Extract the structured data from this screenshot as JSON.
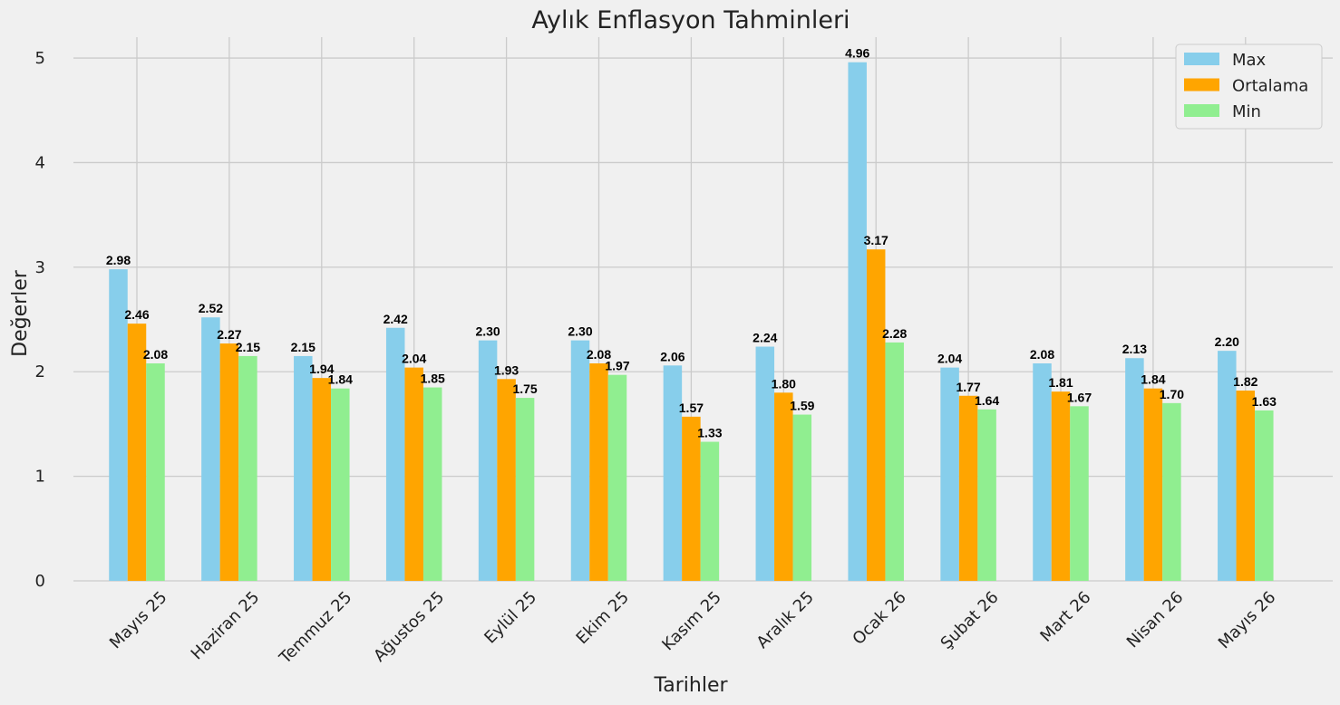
{
  "chart_data": {
    "type": "bar",
    "title": "Aylık Enflasyon Tahminleri",
    "xlabel": "Tarihler",
    "ylabel": "Değerler",
    "ylim": [
      0,
      5.2
    ],
    "yticks": [
      "0",
      "1",
      "2",
      "3",
      "4",
      "5"
    ],
    "grid": true,
    "legend_position": "top-right",
    "categories": [
      "Mayıs 25",
      "Haziran 25",
      "Temmuz 25",
      "Ağustos 25",
      "Eylül 25",
      "Ekim 25",
      "Kasım 25",
      "Aralık 25",
      "Ocak 26",
      "Şubat 26",
      "Mart 26",
      "Nisan 26",
      "Mayıs 26"
    ],
    "series": [
      {
        "name": "Max",
        "color": "#87ceeb",
        "values": [
          2.98,
          2.52,
          2.15,
          2.42,
          2.3,
          2.3,
          2.06,
          2.24,
          4.96,
          2.04,
          2.08,
          2.13,
          2.2
        ],
        "labels": [
          "2.98",
          "2.52",
          "2.15",
          "2.42",
          "2.30",
          "2.30",
          "2.06",
          "2.24",
          "4.96",
          "2.04",
          "2.08",
          "2.13",
          "2.20"
        ]
      },
      {
        "name": "Ortalama",
        "color": "#ffa500",
        "values": [
          2.46,
          2.27,
          1.94,
          2.04,
          1.93,
          2.08,
          1.57,
          1.8,
          3.17,
          1.77,
          1.81,
          1.84,
          1.82
        ],
        "labels": [
          "2.46",
          "2.27",
          "1.94",
          "2.04",
          "1.93",
          "2.08",
          "1.57",
          "1.80",
          "3.17",
          "1.77",
          "1.81",
          "1.84",
          "1.82"
        ]
      },
      {
        "name": "Min",
        "color": "#90ee90",
        "values": [
          2.08,
          2.15,
          1.84,
          1.85,
          1.75,
          1.97,
          1.33,
          1.59,
          2.28,
          1.64,
          1.67,
          1.7,
          1.63
        ],
        "labels": [
          "2.08",
          "2.15",
          "1.84",
          "1.85",
          "1.75",
          "1.97",
          "1.33",
          "1.59",
          "2.28",
          "1.64",
          "1.67",
          "1.70",
          "1.63"
        ]
      }
    ]
  }
}
